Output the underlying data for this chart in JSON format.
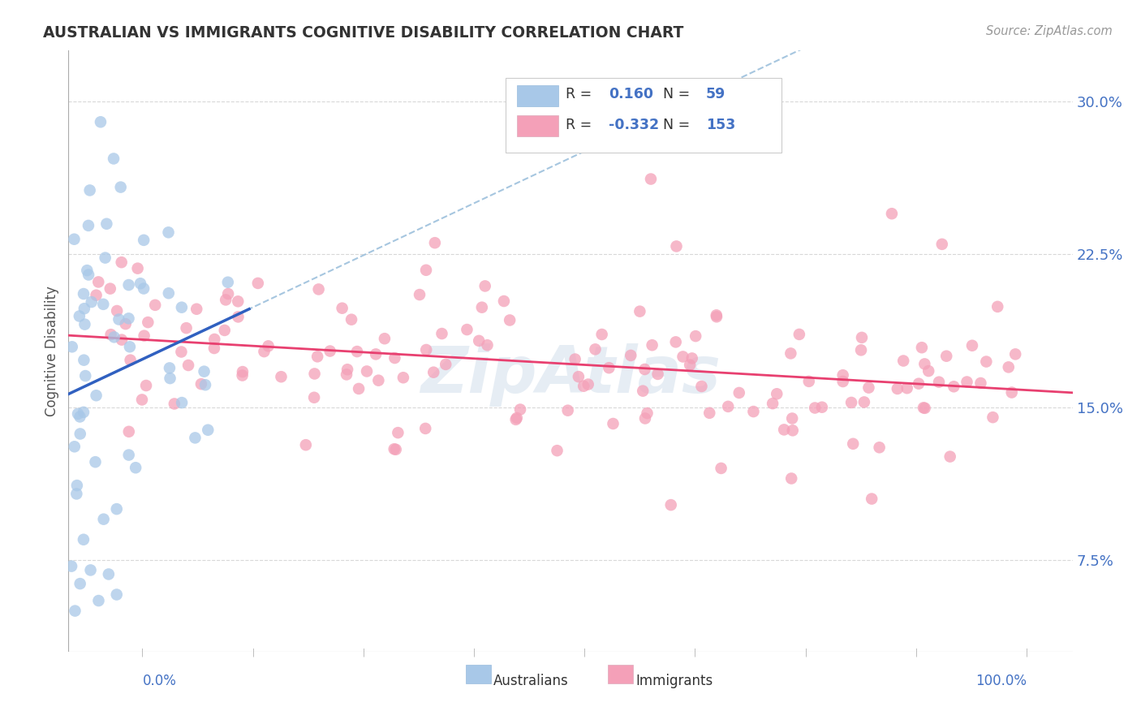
{
  "title": "AUSTRALIAN VS IMMIGRANTS COGNITIVE DISABILITY CORRELATION CHART",
  "source": "Source: ZipAtlas.com",
  "ylabel": "Cognitive Disability",
  "yticks": [
    0.075,
    0.15,
    0.225,
    0.3
  ],
  "ytick_labels": [
    "7.5%",
    "15.0%",
    "22.5%",
    "30.0%"
  ],
  "xmin": 0.0,
  "xmax": 1.0,
  "ymin": 0.03,
  "ymax": 0.325,
  "r_aus": 0.16,
  "n_aus": 59,
  "r_imm": -0.332,
  "n_imm": 153,
  "color_aus": "#a8c8e8",
  "color_imm": "#f4a0b8",
  "trendline_aus_color": "#3060c0",
  "trendline_imm_color": "#e84070",
  "trendline_dashed_color": "#90b8d8",
  "watermark_color": "#c8d8e8",
  "background_color": "#ffffff",
  "grid_color": "#d8d8d8"
}
